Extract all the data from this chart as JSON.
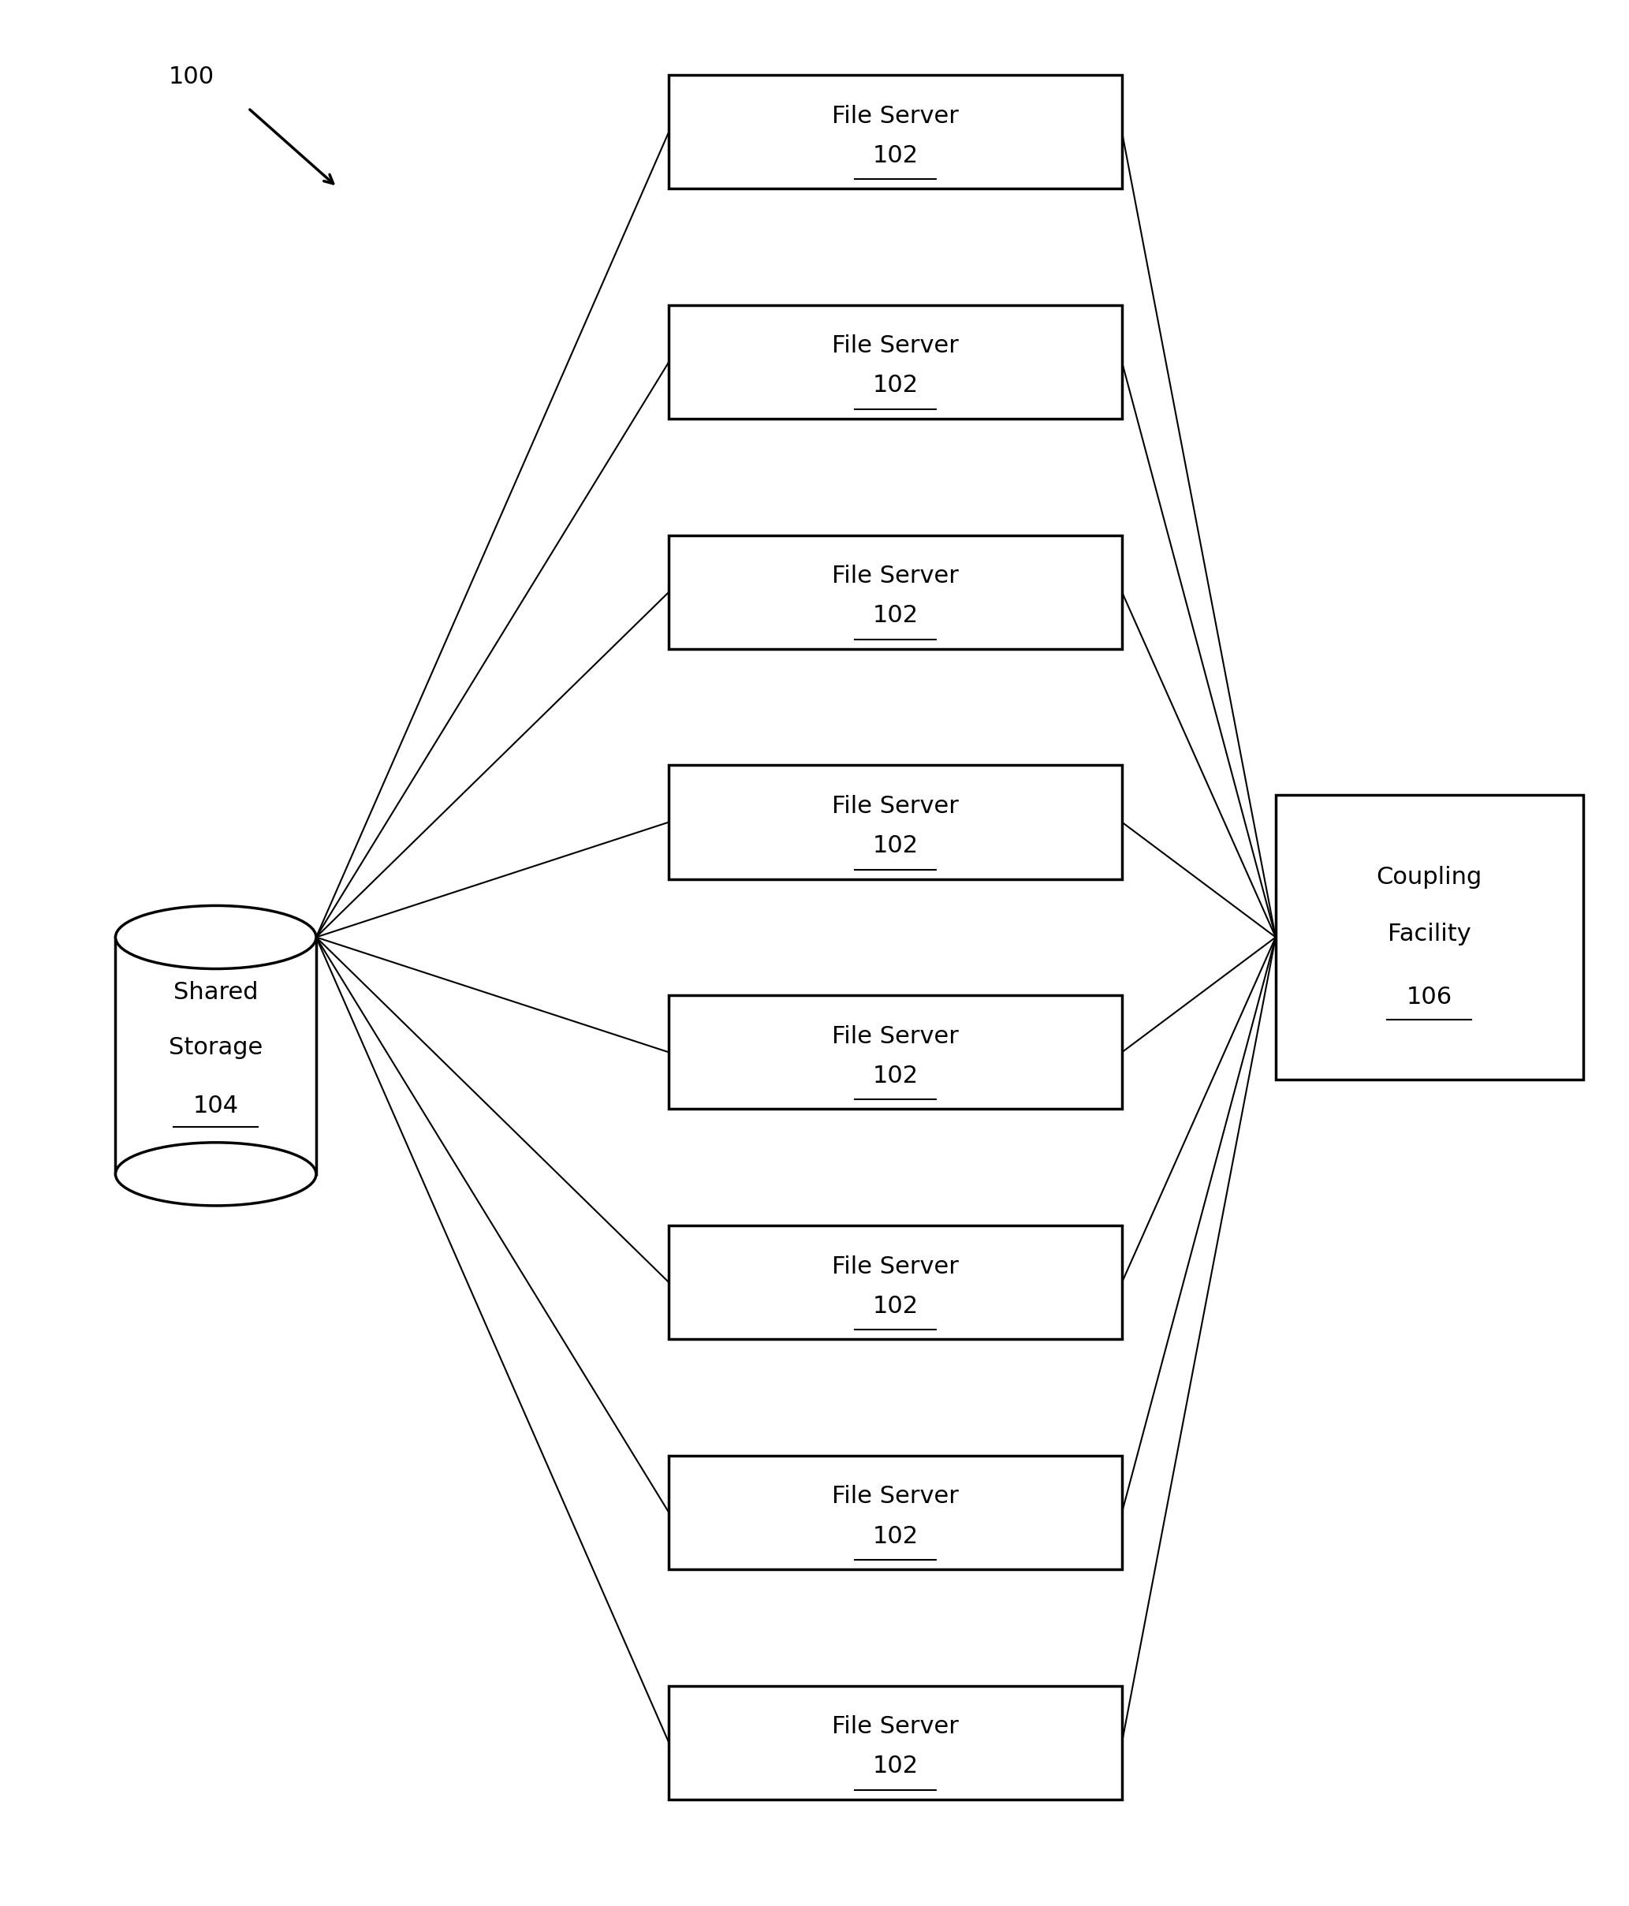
{
  "fig_width": 20.66,
  "fig_height": 24.17,
  "bg_color": "#ffffff",
  "num_file_servers": 8,
  "file_server_label": "File Server",
  "file_server_number": "102",
  "shared_storage_number": "104",
  "coupling_facility_number": "106",
  "diagram_label": "100",
  "box_color": "#ffffff",
  "box_edge_color": "#000000",
  "line_color": "#000000",
  "text_color": "#000000",
  "font_size_box": 22,
  "font_size_diagram_label": 22
}
